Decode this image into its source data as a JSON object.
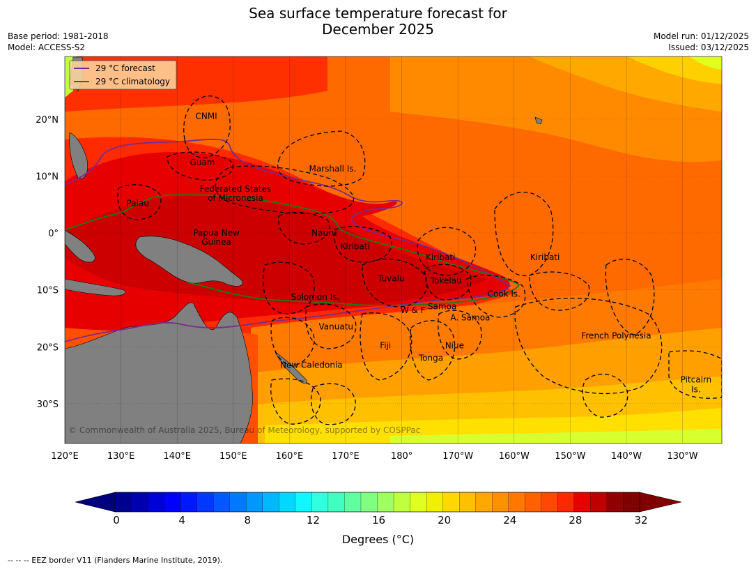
{
  "title_line1": "Sea surface temperature forecast for",
  "title_line2": "December 2025",
  "base_period": "Base period: 1981-2018",
  "model": "Model: ACCESS-S2",
  "model_run": "Model run: 01/12/2025",
  "issued": "Issued: 03/12/2025",
  "legend": [
    {
      "label": "29 °C  forecast",
      "color": "#7b2a8c"
    },
    {
      "label": "29 °C  climatology",
      "color": "#1a7a1a"
    }
  ],
  "copyright": "© Commonwealth of Australia 2025, Bureau of Meteorology, supported by COSPPac",
  "lon_ticks": [
    "120°E",
    "130°E",
    "140°E",
    "150°E",
    "160°E",
    "170°E",
    "180°",
    "170°W",
    "160°W",
    "150°W",
    "140°W",
    "130°W"
  ],
  "lon_values": [
    120,
    130,
    140,
    150,
    160,
    170,
    180,
    190,
    200,
    210,
    220,
    230
  ],
  "lat_ticks": [
    "20°N",
    "10°N",
    "0°",
    "10°S",
    "20°S",
    "30°S"
  ],
  "lat_values": [
    20,
    10,
    0,
    -10,
    -20,
    -30
  ],
  "map_extent": {
    "lon_min": 120,
    "lon_max": 237,
    "lat_min": -37,
    "lat_max": 31
  },
  "regions": [
    {
      "label": "CNMI",
      "lon": 145.2,
      "lat": 20.5
    },
    {
      "label": "Guam",
      "lon": 144.5,
      "lat": 12.4
    },
    {
      "label": "Marshall Is.",
      "lon": 167.7,
      "lat": 11.3
    },
    {
      "label": "Federated States",
      "lon": 150.4,
      "lat": 7.7
    },
    {
      "label": "of Micronesia",
      "lon": 150.4,
      "lat": 6.1
    },
    {
      "label": "Palau",
      "lon": 133.0,
      "lat": 5.2
    },
    {
      "label": "Papua New",
      "lon": 147.0,
      "lat": 0.0
    },
    {
      "label": "Guinea",
      "lon": 147.0,
      "lat": -1.6
    },
    {
      "label": "Nauru",
      "lon": 166.2,
      "lat": 0.0
    },
    {
      "label": "Kiribati",
      "lon": 171.7,
      "lat": -2.4
    },
    {
      "label": "Kiribati",
      "lon": 186.9,
      "lat": -4.3
    },
    {
      "label": "Kiribati",
      "lon": 205.5,
      "lat": -4.3
    },
    {
      "label": "Tuvalu",
      "lon": 178.1,
      "lat": -8.0
    },
    {
      "label": "Tokelau",
      "lon": 187.9,
      "lat": -8.4
    },
    {
      "label": "Cook Is.",
      "lon": 198.2,
      "lat": -10.7
    },
    {
      "label": "Solomon Is.",
      "lon": 164.6,
      "lat": -11.3
    },
    {
      "label": "W & F",
      "lon": 182.0,
      "lat": -13.6
    },
    {
      "label": "Samoa",
      "lon": 187.2,
      "lat": -12.9
    },
    {
      "label": "A. Samoa",
      "lon": 192.2,
      "lat": -14.9
    },
    {
      "label": "Vanuatu",
      "lon": 168.3,
      "lat": -16.5
    },
    {
      "label": "Fiji",
      "lon": 177.1,
      "lat": -19.8
    },
    {
      "label": "Niue",
      "lon": 189.4,
      "lat": -19.8
    },
    {
      "label": "French Polynesia",
      "lon": 218.2,
      "lat": -18.1
    },
    {
      "label": "Tonga",
      "lon": 185.2,
      "lat": -22.0
    },
    {
      "label": "New Caledonia",
      "lon": 163.9,
      "lat": -23.2
    },
    {
      "label": "Pitcairn",
      "lon": 232.4,
      "lat": -25.8
    },
    {
      "label": "Is.",
      "lon": 232.4,
      "lat": -27.5
    }
  ],
  "colorbar": {
    "min": 0,
    "max": 32,
    "step": 1,
    "tick_labels": [
      "0",
      "4",
      "8",
      "12",
      "16",
      "20",
      "24",
      "28",
      "32"
    ],
    "tick_values": [
      0,
      4,
      8,
      12,
      16,
      20,
      24,
      28,
      32
    ],
    "label": "Degrees (°C)",
    "colors": [
      "#00008f",
      "#0000b0",
      "#0000d8",
      "#0000ff",
      "#0018ff",
      "#0038ff",
      "#0058ff",
      "#0078ff",
      "#0098ff",
      "#00b8ff",
      "#00d8ff",
      "#10f8ff",
      "#30ffe0",
      "#40ffc0",
      "#60ffa0",
      "#80ff80",
      "#a0ff60",
      "#c0ff40",
      "#e0ff20",
      "#f0f000",
      "#ffd800",
      "#ffc000",
      "#ffa800",
      "#ff9000",
      "#ff7800",
      "#ff6000",
      "#ff4800",
      "#ff2800",
      "#e80000",
      "#c00000",
      "#900000",
      "#800000"
    ],
    "under_color": "#00007f",
    "over_color": "#800000"
  },
  "footnote": "--  --  -- EEZ border V11 (Flanders Marine Institute, 2019).",
  "colors": {
    "land": "#808080",
    "sst_warm": "#e60000",
    "sst_hot": "#c80000",
    "sst_orange": "#ff5a00",
    "sst_lightorange": "#ff8c00",
    "sst_yellow": "#ffd000",
    "sst_green": "#b8ff40"
  }
}
